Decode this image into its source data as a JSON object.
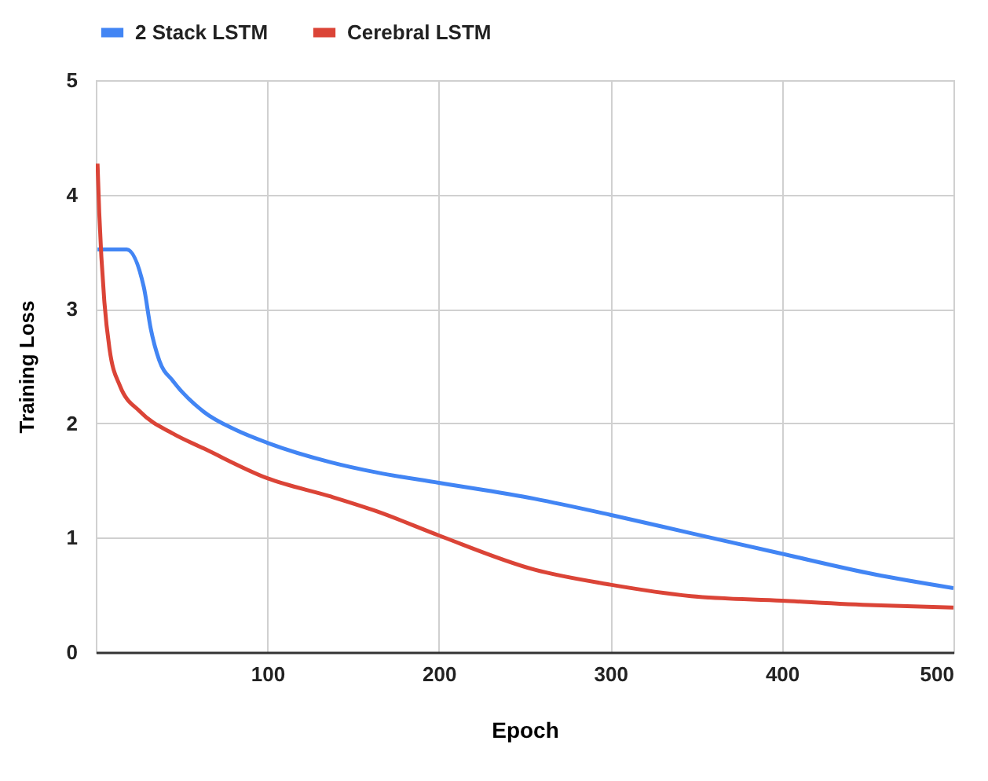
{
  "chart_data": {
    "type": "line",
    "xlabel": "Epoch",
    "ylabel": "Training Loss",
    "xlim": [
      0,
      500
    ],
    "xticks": [
      100,
      200,
      300,
      400,
      500
    ],
    "ylim": [
      0,
      5
    ],
    "yticks": [
      0,
      1,
      2,
      3,
      4,
      5
    ],
    "grid": true,
    "legend": "top",
    "marker": "none",
    "line_style": "solid",
    "series": [
      {
        "name": "2 Stack LSTM",
        "color": "#4285f4",
        "x": [
          1,
          18,
          28,
          32,
          37,
          45,
          63,
          82,
          100,
          137,
          164,
          200,
          256,
          300,
          347,
          400,
          454,
          500
        ],
        "values": [
          3.52,
          3.52,
          3.19,
          2.83,
          2.55,
          2.37,
          2.1,
          1.94,
          1.83,
          1.66,
          1.57,
          1.48,
          1.34,
          1.2,
          1.04,
          0.86,
          0.68,
          0.56
        ]
      },
      {
        "name": "Cerebral LSTM",
        "color": "#db4437",
        "x": [
          1,
          2,
          5,
          8,
          14,
          26,
          45,
          63,
          100,
          137,
          164,
          200,
          256,
          300,
          347,
          400,
          454,
          500
        ],
        "values": [
          4.27,
          3.84,
          3.06,
          2.65,
          2.33,
          2.1,
          1.91,
          1.78,
          1.52,
          1.36,
          1.23,
          1.02,
          0.72,
          0.59,
          0.49,
          0.45,
          0.41,
          0.39
        ]
      }
    ]
  }
}
